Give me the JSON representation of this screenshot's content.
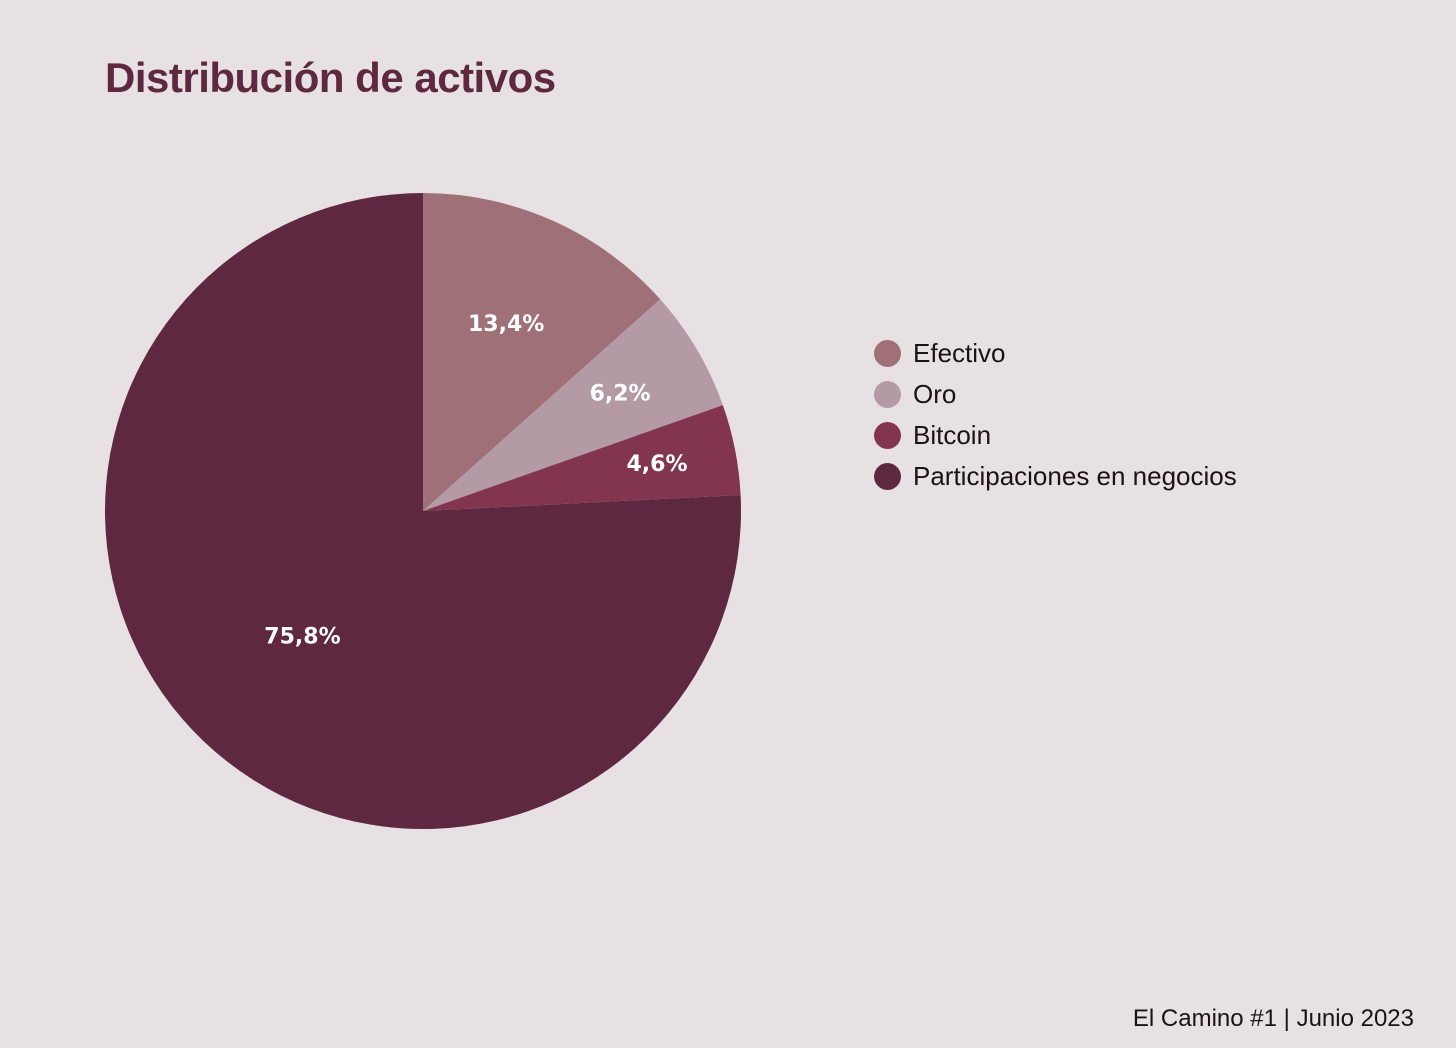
{
  "chart_data": {
    "type": "pie",
    "title": "Distribución de activos",
    "categories": [
      "Efectivo",
      "Oro",
      "Bitcoin",
      "Participaciones en negocios"
    ],
    "values": [
      13.4,
      6.2,
      4.6,
      75.8
    ],
    "labels": [
      "13,4%",
      "6,2%",
      "4,6%",
      "75,8%"
    ],
    "colors": [
      "#a07078",
      "#b39aa5",
      "#83354f",
      "#5e2940"
    ],
    "start": "12 o'clock",
    "direction": "clockwise",
    "legend_position": "right"
  },
  "footer": "El Camino #1 | Junio 2023"
}
